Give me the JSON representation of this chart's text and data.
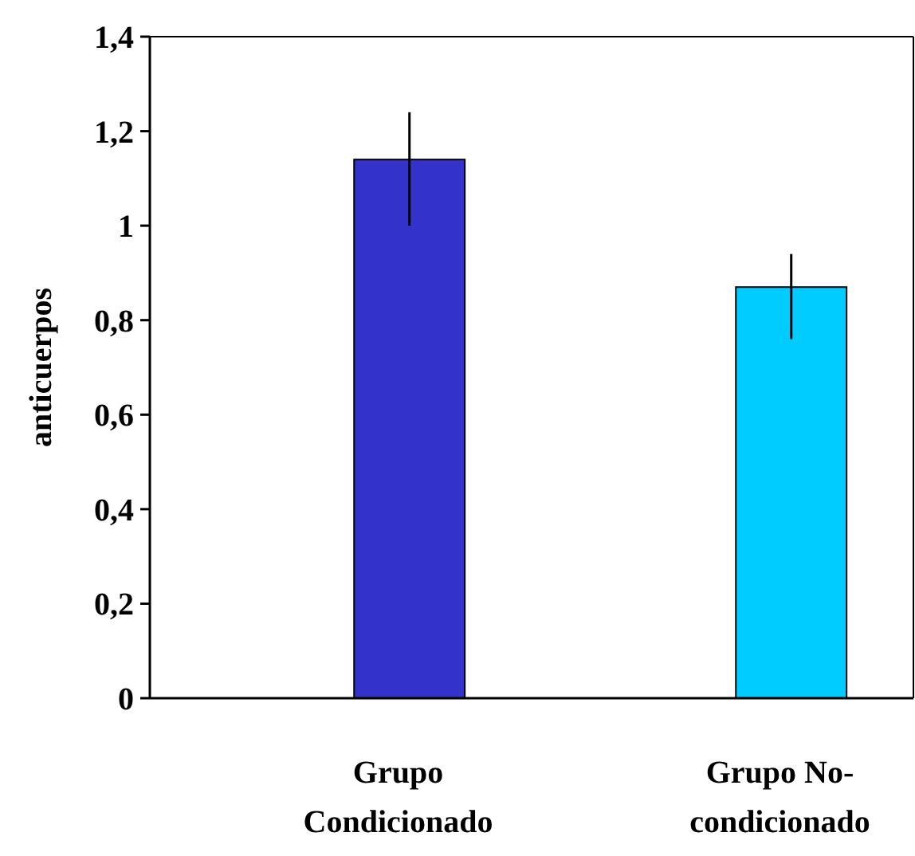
{
  "chart_data": {
    "type": "bar",
    "ylabel": "anticuerpos",
    "categories": [
      "Grupo Condicionado",
      "Grupo No-condicionado"
    ],
    "values": [
      1.14,
      0.87
    ],
    "colors": [
      "#3333cc",
      "#00ccff"
    ],
    "errors": [
      [
        1.0,
        1.24
      ],
      [
        0.76,
        0.94
      ]
    ],
    "ylim": [
      0,
      1.4
    ],
    "yticks": [
      0,
      {
        "value": 0.2,
        "label": "0,2"
      },
      {
        "value": 0.4,
        "label": "0,4"
      },
      {
        "value": 0.6,
        "label": "0,6"
      },
      {
        "value": 0.8,
        "label": "0,8"
      },
      1,
      {
        "value": 1.2,
        "label": "1,2"
      },
      {
        "value": 1.4,
        "label": "1,4"
      }
    ],
    "grid": false
  }
}
